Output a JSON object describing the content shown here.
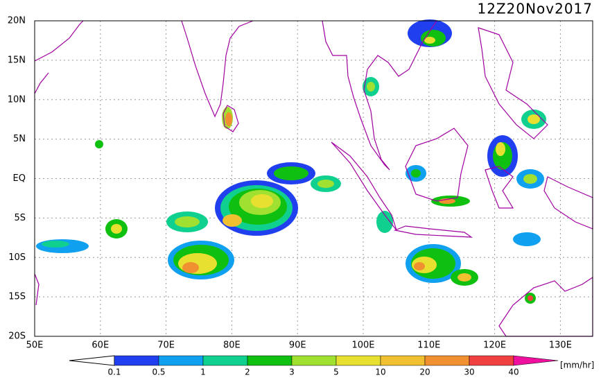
{
  "header": {
    "title": "12Z20Nov2017"
  },
  "axes": {
    "lon_ticks": [
      "50E",
      "60E",
      "70E",
      "80E",
      "90E",
      "100E",
      "110E",
      "120E",
      "130E"
    ],
    "lat_ticks": [
      "20N",
      "15N",
      "10N",
      "5N",
      "EQ",
      "5S",
      "10S",
      "15S",
      "20S"
    ]
  },
  "colorbar": {
    "labels": [
      "0.1",
      "0.5",
      "1",
      "2",
      "3",
      "5",
      "10",
      "20",
      "30",
      "40"
    ],
    "colors": [
      "#2040f0",
      "#10a0f0",
      "#10d090",
      "#10c010",
      "#a0e030",
      "#e8e030",
      "#f0c030",
      "#f09030",
      "#f04040",
      "#f010a0"
    ],
    "unit": "[mm/hr]"
  }
}
